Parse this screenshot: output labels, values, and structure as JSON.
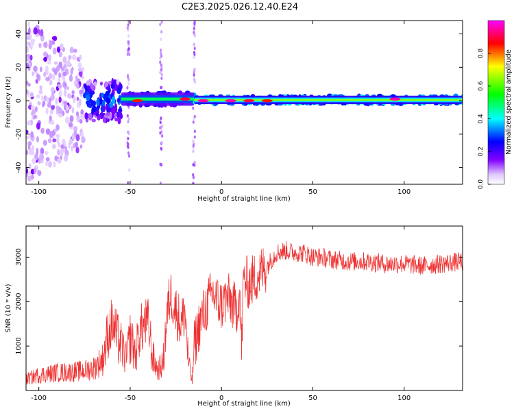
{
  "figure": {
    "title": "C2E3.2025.026.12.40.E24"
  },
  "chart_data": [
    {
      "type": "heatmap",
      "xlabel": "Height of straight line (km)",
      "ylabel": "Frequency (Hz)",
      "xlim": [
        -107,
        132
      ],
      "ylim": [
        -50,
        48
      ],
      "xticks": [
        -100,
        -50,
        0,
        50,
        100
      ],
      "yticks": [
        -40,
        -20,
        0,
        20,
        40
      ],
      "colorbar": {
        "label": "Normalized spectral amplitude",
        "range": [
          0,
          1
        ],
        "ticks": [
          0.0,
          0.2,
          0.4,
          0.6,
          0.8
        ],
        "colormap": [
          "#ffffff",
          "#e0c8ff",
          "#8000ff",
          "#0000ff",
          "#00ffff",
          "#00ff00",
          "#ffff00",
          "#ff0000",
          "#ff00ff"
        ]
      },
      "bands": [
        {
          "x_from": -107,
          "x_to": -75,
          "f_center": 0,
          "f_halfwidth": 48,
          "amplitude": 0.15,
          "note": "broad scattered noise"
        },
        {
          "x_from": -75,
          "x_to": -55,
          "f_center": 0,
          "f_halfwidth": 12,
          "amplitude": 0.3
        },
        {
          "x_from": -55,
          "x_to": -15,
          "f_center": 1,
          "f_halfwidth": 4,
          "amplitude": 0.5
        },
        {
          "x_from": -15,
          "x_to": 132,
          "f_center": 0.5,
          "f_halfwidth": 2.5,
          "amplitude": 0.65
        }
      ],
      "hotspots": [
        {
          "x": -46,
          "f": 0,
          "amplitude": 0.85
        },
        {
          "x": -20,
          "f": 1,
          "amplitude": 0.9
        },
        {
          "x": -10,
          "f": 0,
          "amplitude": 0.95
        },
        {
          "x": 5,
          "f": 0,
          "amplitude": 0.95
        },
        {
          "x": 15,
          "f": 0,
          "amplitude": 0.9
        },
        {
          "x": 25,
          "f": 0,
          "amplitude": 0.85
        },
        {
          "x": 95,
          "f": 1,
          "amplitude": 0.95
        }
      ],
      "vertical_streaks": [
        -51,
        -33,
        -15
      ]
    },
    {
      "type": "line",
      "xlabel": "Height of straight line (km)",
      "ylabel": "SNR (10 * v/v)",
      "xlim": [
        -107,
        132
      ],
      "ylim": [
        0,
        3700
      ],
      "xticks": [
        -100,
        -50,
        0,
        50,
        100
      ],
      "yticks": [
        1000,
        2000,
        3000
      ],
      "color": "#ee3333",
      "series": [
        {
          "x": [
            -107,
            -100,
            -90,
            -80,
            -75,
            -70,
            -65,
            -62,
            -60,
            -57,
            -55,
            -52,
            -50,
            -47,
            -45,
            -42,
            -40,
            -38,
            -35,
            -32,
            -30,
            -28,
            -25,
            -22,
            -20,
            -18,
            -16,
            -15,
            -12,
            -10,
            -8,
            -5,
            -2,
            0,
            3,
            5,
            8,
            10,
            11,
            12,
            15,
            20,
            25,
            30,
            35,
            40,
            45,
            50,
            55,
            60,
            70,
            80,
            90,
            100,
            110,
            120,
            132
          ],
          "y": [
            250,
            350,
            400,
            420,
            450,
            500,
            700,
            1300,
            1500,
            1200,
            1000,
            700,
            1200,
            800,
            1300,
            1500,
            1500,
            800,
            450,
            600,
            1600,
            2200,
            1800,
            1500,
            1800,
            600,
            200,
            1000,
            1500,
            1700,
            1900,
            2200,
            2000,
            1900,
            2100,
            2000,
            1800,
            2200,
            900,
            2500,
            2400,
            2600,
            2800,
            3100,
            3150,
            3100,
            3100,
            3000,
            3000,
            2950,
            2900,
            2900,
            2850,
            2850,
            2800,
            2850,
            2900
          ]
        }
      ]
    }
  ]
}
